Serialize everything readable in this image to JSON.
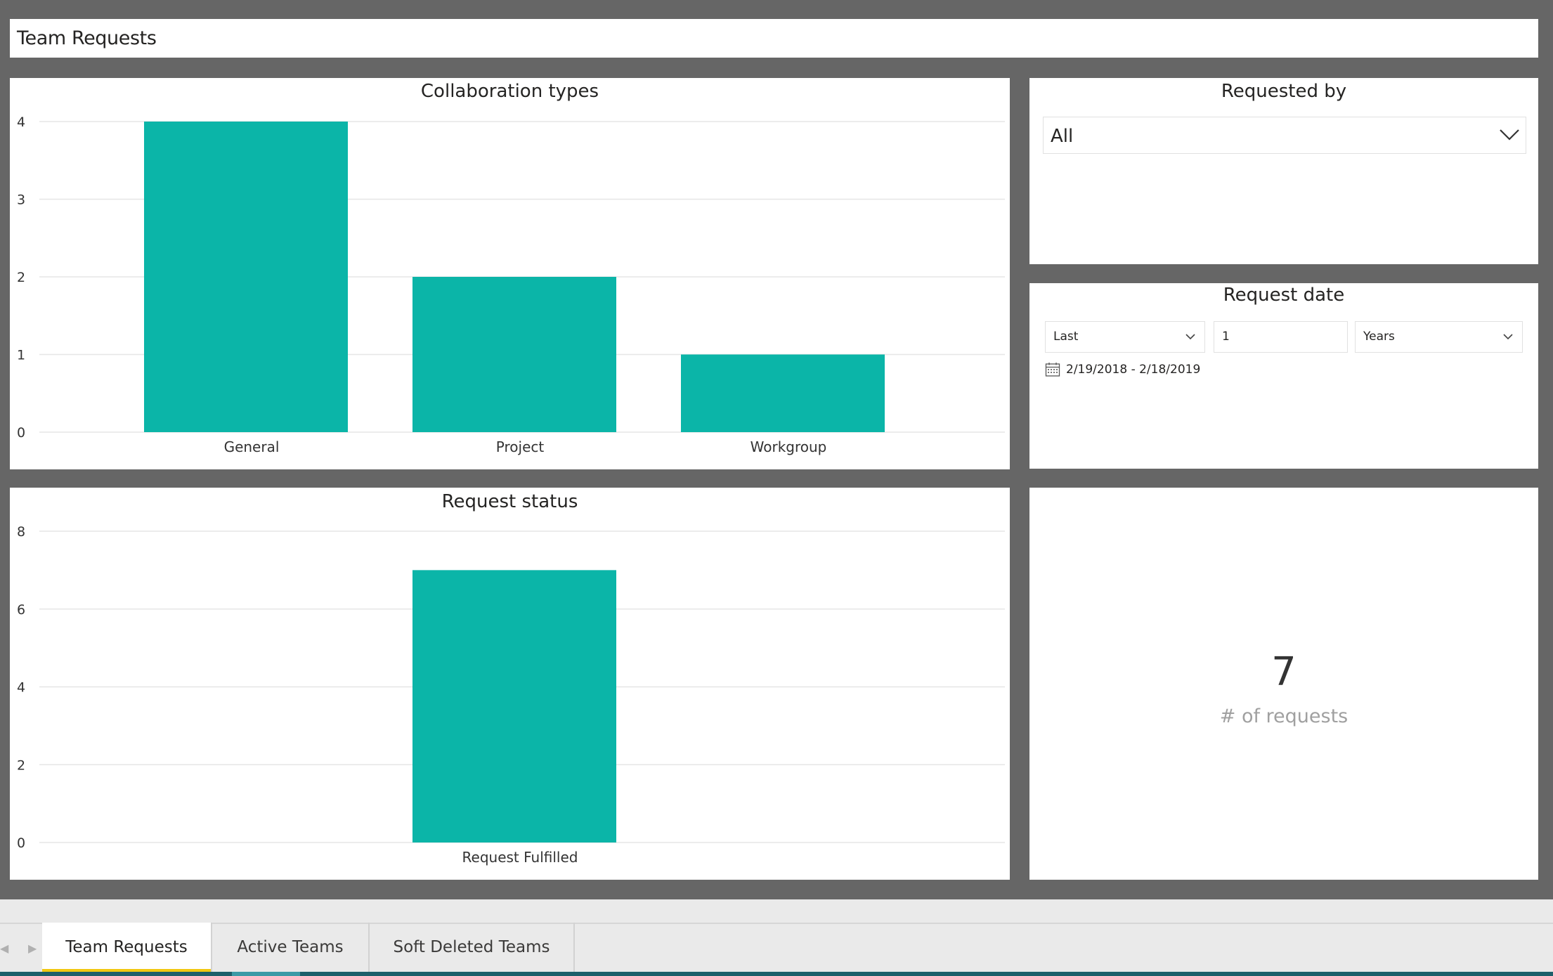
{
  "page_title": "Team Requests",
  "colors": {
    "bar": "#0BB5A8",
    "canvas": "#666666",
    "active_tab_underline": "#F2C811"
  },
  "slicer_requested_by": {
    "title": "Requested by",
    "value": "All",
    "icon": "chevron-down-icon"
  },
  "slicer_request_date": {
    "title": "Request date",
    "mode": "Last",
    "count": "1",
    "unit": "Years",
    "range": "2/19/2018 - 2/18/2019",
    "range_icon": "calendar-icon"
  },
  "card": {
    "value": "7",
    "label": "# of requests"
  },
  "tabs": [
    {
      "label": "Team Requests",
      "active": true
    },
    {
      "label": "Active Teams",
      "active": false
    },
    {
      "label": "Soft Deleted Teams",
      "active": false
    }
  ],
  "chart_data": [
    {
      "type": "bar",
      "title": "Collaboration types",
      "categories": [
        "General",
        "Project",
        "Workgroup"
      ],
      "values": [
        4,
        2,
        1
      ],
      "ylim": [
        0,
        4
      ],
      "yticks": [
        0,
        1,
        2,
        3,
        4
      ],
      "grid": true,
      "xlabel": "",
      "ylabel": ""
    },
    {
      "type": "bar",
      "title": "Request status",
      "categories": [
        "Request Fulfilled"
      ],
      "values": [
        7
      ],
      "ylim": [
        0,
        8
      ],
      "yticks": [
        0,
        2,
        4,
        6,
        8
      ],
      "grid": true,
      "xlabel": "",
      "ylabel": ""
    }
  ]
}
